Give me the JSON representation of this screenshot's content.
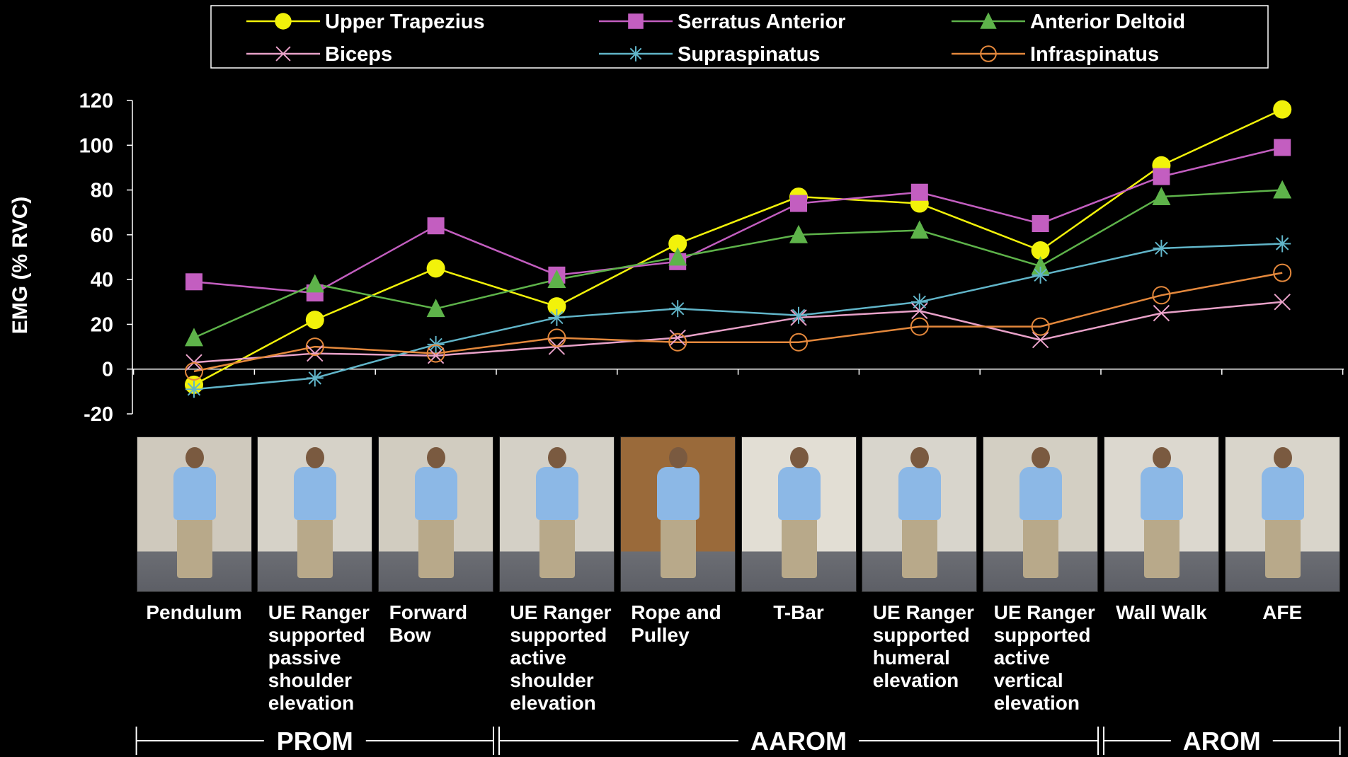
{
  "chart_data": {
    "type": "line",
    "ylabel": "EMG (% RVC)",
    "ylim": [
      -20,
      120
    ],
    "yticks": [
      "120",
      "100",
      "80",
      "60",
      "40",
      "20",
      "0",
      "-20"
    ],
    "categories": [
      [
        "Pendulum"
      ],
      [
        "UE Ranger",
        "supported",
        "passive",
        "shoulder",
        "elevation"
      ],
      [
        "Forward",
        "Bow"
      ],
      [
        "UE Ranger",
        "supported",
        "active",
        "shoulder",
        "elevation"
      ],
      [
        "Rope and",
        "Pulley"
      ],
      [
        "T-Bar"
      ],
      [
        "UE Ranger",
        "supported",
        "humeral",
        "elevation"
      ],
      [
        "UE Ranger",
        "supported",
        "active",
        "vertical",
        "elevation"
      ],
      [
        "Wall Walk"
      ],
      [
        "AFE"
      ]
    ],
    "series": [
      {
        "name": "Upper Trapezius",
        "marker": "circle-filled",
        "color": "#f2f20a",
        "values": [
          -7,
          22,
          45,
          28,
          56,
          77,
          74,
          53,
          91,
          116
        ]
      },
      {
        "name": "Serratus Anterior",
        "marker": "square",
        "color": "#c35ec0",
        "values": [
          39,
          34,
          64,
          42,
          48,
          74,
          79,
          65,
          86,
          99
        ]
      },
      {
        "name": "Anterior Deltoid",
        "marker": "triangle",
        "color": "#5eb34a",
        "values": [
          14,
          38,
          27,
          40,
          50,
          60,
          62,
          46,
          77,
          80
        ]
      },
      {
        "name": "Biceps",
        "marker": "x",
        "color": "#e8a1c8",
        "values": [
          3,
          7,
          6,
          10,
          14,
          23,
          26,
          13,
          25,
          30
        ]
      },
      {
        "name": "Supraspinatus",
        "marker": "star",
        "color": "#61b5c9",
        "values": [
          -9,
          -4,
          11,
          23,
          27,
          24,
          30,
          42,
          54,
          56
        ]
      },
      {
        "name": "Infraspinatus",
        "marker": "circle-open",
        "color": "#e4883c",
        "values": [
          -1,
          10,
          7,
          14,
          12,
          12,
          19,
          19,
          33,
          43
        ]
      }
    ],
    "phases": [
      {
        "label": "PROM",
        "from": 0,
        "to": 2
      },
      {
        "label": "AAROM",
        "from": 3,
        "to": 7
      },
      {
        "label": "AROM",
        "from": 8,
        "to": 9
      }
    ],
    "legend": "top"
  }
}
